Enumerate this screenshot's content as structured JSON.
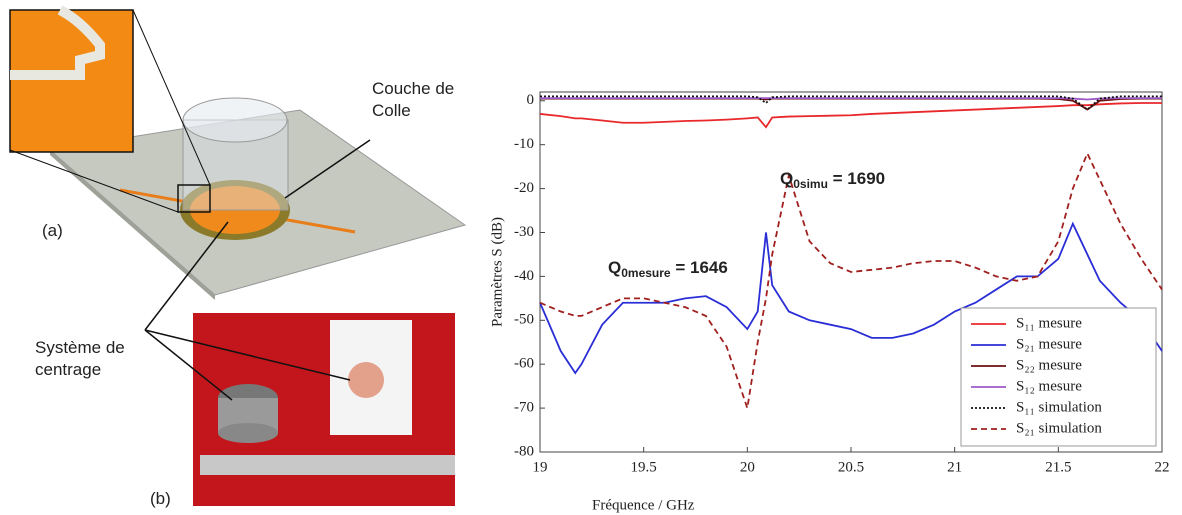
{
  "figure": {
    "callout_glue": "Couche de Colle",
    "label_a": "(a)",
    "callout_centering": "Système de centrage",
    "label_b": "(b)"
  },
  "chart_data": {
    "type": "line",
    "xlabel": "Fréquence / GHz",
    "ylabel": "Paramètres S (dB)",
    "xlim": [
      19,
      22
    ],
    "xticks": [
      19,
      19.5,
      20,
      20.5,
      21,
      21.5,
      22
    ],
    "ylim": [
      -80,
      2
    ],
    "yticks": [
      -80,
      -70,
      -60,
      -50,
      -40,
      -30,
      -20,
      -10,
      0
    ],
    "legend": "lower right",
    "x": [
      19,
      19.1,
      19.17,
      19.2,
      19.3,
      19.4,
      19.5,
      19.6,
      19.7,
      19.8,
      19.9,
      20,
      20.05,
      20.09,
      20.12,
      20.2,
      20.3,
      20.4,
      20.5,
      20.6,
      20.7,
      20.8,
      20.9,
      21,
      21.1,
      21.2,
      21.3,
      21.4,
      21.5,
      21.57,
      21.64,
      21.7,
      21.8,
      21.9,
      22
    ],
    "series": [
      {
        "name": "S₁₁ mesure",
        "color": "#e8282b",
        "style": "solid",
        "values": [
          -3,
          -3.5,
          -4,
          -4,
          -4.5,
          -5,
          -5,
          -4.8,
          -4.6,
          -4.5,
          -4.3,
          -4,
          -3.8,
          -6,
          -3.8,
          -3.6,
          -3.5,
          -3.4,
          -3.3,
          -3,
          -2.8,
          -2.6,
          -2.4,
          -2.2,
          -2,
          -1.8,
          -1.6,
          -1.4,
          -1.2,
          -1,
          -1,
          -0.8,
          -0.6,
          -0.5,
          -0.5
        ]
      },
      {
        "name": "S₂₁ mesure",
        "color": "#2a2ed6",
        "style": "solid",
        "values": [
          -46,
          -57,
          -62,
          -60,
          -51,
          -46,
          -46,
          -46,
          -45,
          -44.5,
          -47,
          -52,
          -48,
          -30,
          -42,
          -48,
          -50,
          -51,
          -52,
          -54,
          -54,
          -53,
          -51,
          -48,
          -46,
          -43,
          -40,
          -40,
          -36,
          -28,
          -35,
          -41,
          -46,
          -50,
          -57
        ]
      },
      {
        "name": "S₂₂ mesure",
        "color": "#6b1010",
        "style": "solid",
        "values": [
          0.5,
          0.5,
          0.5,
          0.5,
          0.5,
          0.5,
          0.5,
          0.5,
          0.5,
          0.5,
          0.5,
          0.5,
          0.5,
          0.3,
          0.5,
          0.5,
          0.5,
          0.5,
          0.5,
          0.5,
          0.5,
          0.5,
          0.5,
          0.5,
          0.5,
          0.5,
          0.5,
          0.5,
          0.4,
          0,
          -2,
          0,
          0.4,
          0.5,
          0.5
        ]
      },
      {
        "name": "S₁₂ mesure",
        "color": "#9b59c9",
        "style": "solid",
        "values": [
          0.6,
          0.6,
          0.6,
          0.6,
          0.6,
          0.6,
          0.6,
          0.6,
          0.6,
          0.6,
          0.6,
          0.6,
          0.6,
          0.6,
          0.6,
          0.6,
          0.6,
          0.6,
          0.6,
          0.6,
          0.6,
          0.6,
          0.6,
          0.6,
          0.6,
          0.6,
          0.6,
          0.6,
          0.6,
          0.5,
          0.3,
          0.5,
          0.6,
          0.6,
          0.6
        ]
      },
      {
        "name": "S₁₁ simulation",
        "color": "#111111",
        "style": "dotted",
        "values": [
          1,
          1,
          1,
          1,
          1,
          1,
          1,
          1,
          1,
          1,
          1,
          1,
          0.8,
          -0.5,
          0.8,
          1,
          1,
          1,
          1,
          1,
          1,
          1,
          1,
          1,
          1,
          1,
          1,
          1,
          1,
          0.5,
          -2,
          0.5,
          1,
          1,
          1
        ]
      },
      {
        "name": "S₂₁ simulation",
        "color": "#a0201e",
        "style": "dashed",
        "values": [
          -46,
          -48,
          -49,
          -49,
          -47,
          -45,
          -45,
          -46,
          -47,
          -49,
          -56,
          -70,
          -55,
          -45,
          -35,
          -17,
          -32,
          -37,
          -39,
          -38.5,
          -38,
          -37,
          -36.5,
          -36.5,
          -38,
          -40,
          -41,
          -40,
          -32,
          -20,
          -12,
          -18,
          -28,
          -36,
          -43
        ]
      }
    ],
    "annotations": [
      {
        "main": "Q",
        "sub": "0simu",
        "rest": " = 1690",
        "color": "#c5651c"
      },
      {
        "main": "Q",
        "sub": "0mesure",
        "rest": " = 1646",
        "color": "#4472c4"
      }
    ]
  }
}
